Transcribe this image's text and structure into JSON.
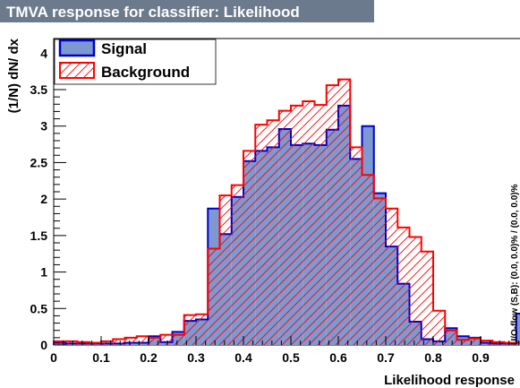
{
  "chart_data": {
    "type": "histogram",
    "title": "TMVA response for classifier: Likelihood",
    "xlabel": "Likelihood response",
    "ylabel": "(1/N) dN/ dx",
    "side_text": "U/O-flow (S,B): (0.0, 0.0)% / (0.0, 0.0)%",
    "xlim": [
      0,
      1
    ],
    "ylim": [
      0,
      4.2
    ],
    "x_ticks": [
      0,
      0.1,
      0.2,
      0.3,
      0.4,
      0.5,
      0.6,
      0.7,
      0.8,
      0.9
    ],
    "x_tick_labels": [
      "0",
      "0.1",
      "0.2",
      "0.3",
      "0.4",
      "0.5",
      "0.6",
      "0.7",
      "0.8",
      "0.9"
    ],
    "y_ticks": [
      0,
      0.5,
      1,
      1.5,
      2,
      2.5,
      3,
      3.5,
      4
    ],
    "y_tick_labels": [
      "0",
      "0.5",
      "1",
      "1.5",
      "2",
      "2.5",
      "3",
      "3.5",
      "4"
    ],
    "legend": {
      "placement": "top-left"
    },
    "bin_edges_range": [
      0,
      1
    ],
    "n_bins": 40,
    "series": [
      {
        "name": "Signal",
        "style": "filled",
        "fill_color": "#7d99d1",
        "line_color": "#0000cc",
        "values": [
          0.03,
          0.02,
          0.02,
          0.02,
          0.02,
          0.02,
          0.03,
          0.03,
          0.12,
          0.04,
          0.18,
          0.33,
          0.35,
          1.87,
          1.52,
          2.03,
          2.52,
          2.66,
          2.71,
          2.96,
          2.74,
          2.76,
          2.74,
          2.95,
          3.28,
          2.55,
          3.0,
          2.08,
          1.35,
          0.84,
          0.32,
          0.08,
          0.05,
          0.23,
          0.12,
          0.1,
          0.03,
          0.02,
          0.02,
          0.43
        ]
      },
      {
        "name": "Background",
        "style": "hatched",
        "fill_color": "#ff0000",
        "line_color": "#ff0000",
        "values": [
          0.05,
          0.05,
          0.04,
          0.03,
          0.05,
          0.08,
          0.1,
          0.12,
          0.1,
          0.14,
          0.14,
          0.41,
          0.42,
          1.32,
          2.05,
          2.19,
          2.66,
          3.02,
          3.08,
          3.21,
          3.28,
          3.34,
          3.29,
          3.56,
          3.64,
          2.71,
          2.33,
          2.01,
          1.87,
          1.61,
          1.48,
          1.28,
          0.47,
          0.2,
          0.07,
          0.09,
          0.06,
          0.04,
          0.03,
          0.03
        ]
      }
    ]
  }
}
